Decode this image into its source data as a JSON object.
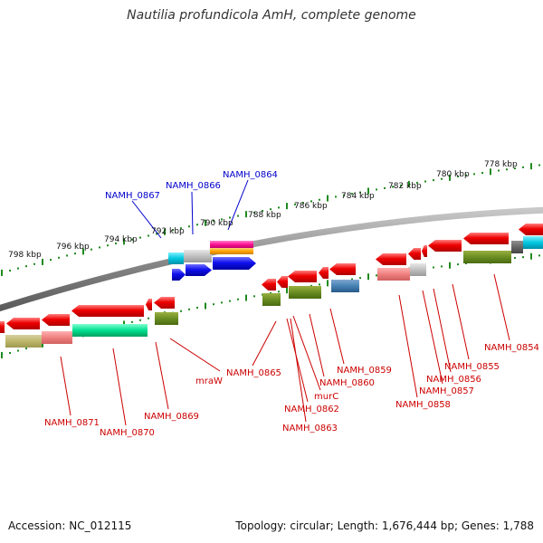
{
  "title": "Nautilia profundicola AmH, complete genome",
  "accession": "Accession: NC_012115",
  "summary": "Topology: circular; Length: 1,676,444 bp; Genes: 1,788",
  "colors": {
    "backbone": "#8a8a8a",
    "tick": "#1f8a1f",
    "forward_label": "#0000cc",
    "reverse_label": "#cc0000",
    "gene_red": "#ee0000",
    "gene_blue": "#1010ee"
  },
  "kbp_labels": [
    "798 kbp",
    "796 kbp",
    "794 kbp",
    "792 kbp",
    "790 kbp",
    "788 kbp",
    "786 kbp",
    "784 kbp",
    "782 kbp",
    "780 kbp",
    "778 kbp"
  ],
  "forward_labels": [
    "NAMH_0867",
    "NAMH_0866",
    "NAMH_0864"
  ],
  "reverse_labels": [
    "NAMH_0871",
    "NAMH_0870",
    "NAMH_0869",
    "mraW",
    "NAMH_0865",
    "NAMH_0862",
    "NAMH_0863",
    "murC",
    "NAMH_0860",
    "NAMH_0859",
    "NAMH_0858",
    "NAMH_0857",
    "NAMH_0856",
    "NAMH_0855",
    "NAMH_0854"
  ]
}
